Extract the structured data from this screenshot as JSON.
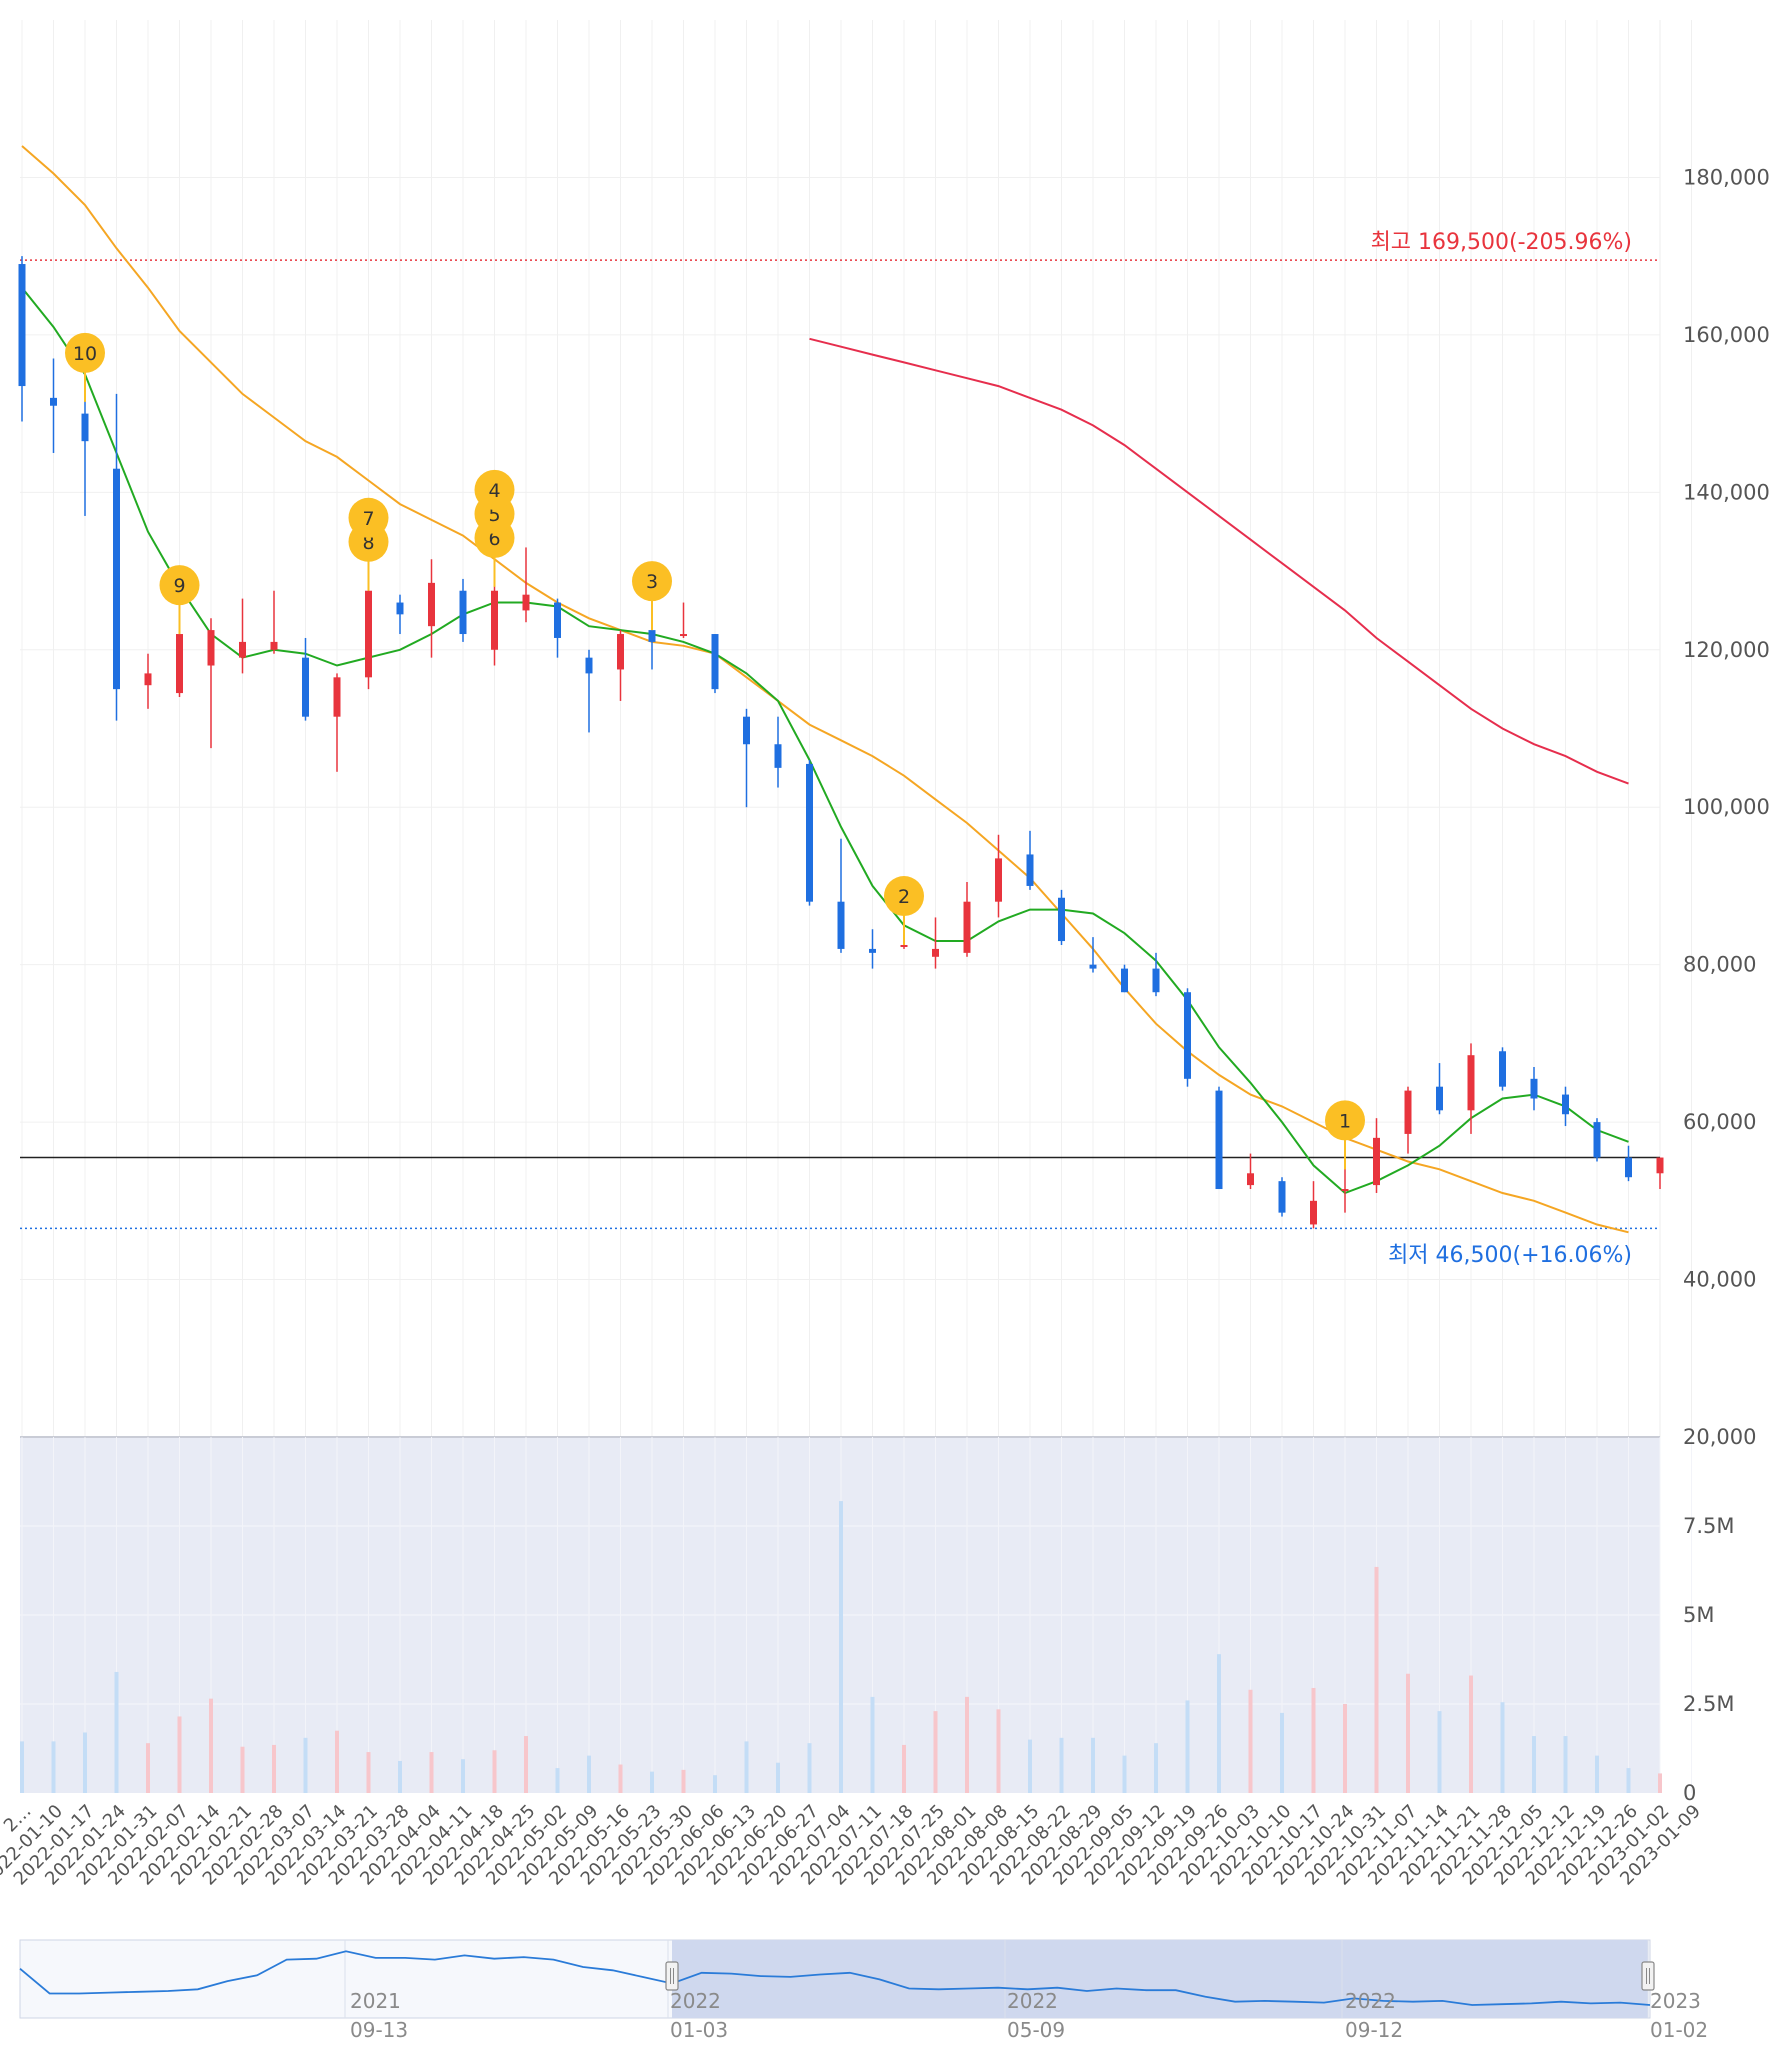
{
  "chart_data": {
    "type": "candlestick",
    "price_axis": {
      "ticks": [
        "180,000",
        "160,000",
        "140,000",
        "120,000",
        "100,000",
        "80,000",
        "60,000",
        "40,000",
        "20,000"
      ],
      "range": [
        20000,
        200000
      ]
    },
    "volume_axis": {
      "ticks": [
        "7.5M",
        "5M",
        "2.5M",
        "0"
      ],
      "range": [
        0,
        10000000
      ]
    },
    "max_label": "최고 169,500(-205.96%)",
    "min_label": "최저 46,500(+16.06%)",
    "max_value": 169500,
    "min_value": 46500,
    "current_line": 55500,
    "x_labels": [
      "2…",
      "01-10",
      "01-17",
      "01-24",
      "01-31",
      "02-07",
      "02-14",
      "02-21",
      "02-28",
      "03-07",
      "03-14",
      "03-21",
      "03-28",
      "04-04",
      "04-11",
      "04-18",
      "04-25",
      "05-02",
      "05-09",
      "05-16",
      "05-23",
      "05-30",
      "06-06",
      "06-13",
      "06-20",
      "06-27",
      "07-04",
      "07-11",
      "07-18",
      "07-25",
      "08-01",
      "08-08",
      "08-15",
      "08-22",
      "08-29",
      "09-05",
      "09-12",
      "09-19",
      "09-26",
      "10-03",
      "10-10",
      "10-17",
      "10-24",
      "10-31",
      "11-07",
      "11-14",
      "11-21",
      "11-28",
      "12-05",
      "12-12",
      "12-19",
      "12-26",
      "01-02",
      "01-09"
    ],
    "x_label_years": [
      "",
      "2022",
      "2022",
      "2022",
      "2022",
      "2022",
      "2022",
      "2022",
      "2022",
      "2022",
      "2022",
      "2022",
      "2022",
      "2022",
      "2022",
      "2022",
      "2022",
      "2022",
      "2022",
      "2022",
      "2022",
      "2022",
      "2022",
      "2022",
      "2022",
      "2022",
      "2022",
      "2022",
      "2022",
      "2022",
      "2022",
      "2022",
      "2022",
      "2022",
      "2022",
      "2022",
      "2022",
      "2022",
      "2022",
      "2022",
      "2022",
      "2022",
      "2022",
      "2022",
      "2022",
      "2022",
      "2022",
      "2022",
      "2022",
      "2022",
      "2022",
      "2022",
      "2023",
      "2023"
    ],
    "candles": [
      {
        "o": 169000,
        "h": 170000,
        "l": 149000,
        "c": 153500
      },
      {
        "o": 152000,
        "h": 157000,
        "l": 145000,
        "c": 151000
      },
      {
        "o": 150000,
        "h": 152000,
        "l": 137000,
        "c": 146500
      },
      {
        "o": 143000,
        "h": 152500,
        "l": 111000,
        "c": 115000
      },
      {
        "o": 115500,
        "h": 119500,
        "l": 112500,
        "c": 117000
      },
      {
        "o": 114500,
        "h": 122500,
        "l": 114000,
        "c": 122000
      },
      {
        "o": 118000,
        "h": 124000,
        "l": 107500,
        "c": 122500
      },
      {
        "o": 119000,
        "h": 126500,
        "l": 117000,
        "c": 121000
      },
      {
        "o": 120000,
        "h": 127500,
        "l": 119500,
        "c": 121000
      },
      {
        "o": 119000,
        "h": 121500,
        "l": 111000,
        "c": 111500
      },
      {
        "o": 111500,
        "h": 117000,
        "l": 104500,
        "c": 116500
      },
      {
        "o": 116500,
        "h": 128000,
        "l": 115000,
        "c": 127500
      },
      {
        "o": 126000,
        "h": 127000,
        "l": 122000,
        "c": 124500
      },
      {
        "o": 123000,
        "h": 131500,
        "l": 119000,
        "c": 128500
      },
      {
        "o": 127500,
        "h": 129000,
        "l": 121000,
        "c": 122000
      },
      {
        "o": 120000,
        "h": 128500,
        "l": 118000,
        "c": 127500
      },
      {
        "o": 125000,
        "h": 133000,
        "l": 123500,
        "c": 127000
      },
      {
        "o": 126000,
        "h": 126500,
        "l": 119000,
        "c": 121500
      },
      {
        "o": 119000,
        "h": 120000,
        "l": 109500,
        "c": 117000
      },
      {
        "o": 117500,
        "h": 122500,
        "l": 113500,
        "c": 122000
      },
      {
        "o": 122500,
        "h": 123000,
        "l": 117500,
        "c": 121000
      },
      {
        "o": 122000,
        "h": 126000,
        "l": 121500,
        "c": 122000
      },
      {
        "o": 122000,
        "h": 122000,
        "l": 114500,
        "c": 115000
      },
      {
        "o": 111500,
        "h": 112500,
        "l": 100000,
        "c": 108000
      },
      {
        "o": 108000,
        "h": 111500,
        "l": 102500,
        "c": 105000
      },
      {
        "o": 105500,
        "h": 106000,
        "l": 87500,
        "c": 88000
      },
      {
        "o": 88000,
        "h": 96000,
        "l": 81500,
        "c": 82000
      },
      {
        "o": 82000,
        "h": 84500,
        "l": 79500,
        "c": 81500
      },
      {
        "o": 82500,
        "h": 83000,
        "l": 82000,
        "c": 82500
      },
      {
        "o": 81000,
        "h": 86000,
        "l": 79500,
        "c": 82000
      },
      {
        "o": 81500,
        "h": 90500,
        "l": 81000,
        "c": 88000
      },
      {
        "o": 88000,
        "h": 96500,
        "l": 86000,
        "c": 93500
      },
      {
        "o": 94000,
        "h": 97000,
        "l": 89500,
        "c": 90000
      },
      {
        "o": 88500,
        "h": 89500,
        "l": 82500,
        "c": 83000
      },
      {
        "o": 80000,
        "h": 83500,
        "l": 79000,
        "c": 79500
      },
      {
        "o": 79500,
        "h": 80000,
        "l": 76500,
        "c": 76500
      },
      {
        "o": 79500,
        "h": 81500,
        "l": 76000,
        "c": 76500
      },
      {
        "o": 76500,
        "h": 77000,
        "l": 64500,
        "c": 65500
      },
      {
        "o": 64000,
        "h": 64500,
        "l": 51500,
        "c": 51500
      },
      {
        "o": 52000,
        "h": 56000,
        "l": 51500,
        "c": 53500
      },
      {
        "o": 52500,
        "h": 53000,
        "l": 48000,
        "c": 48500
      },
      {
        "o": 47000,
        "h": 52500,
        "l": 46500,
        "c": 50000
      },
      {
        "o": 51500,
        "h": 54500,
        "l": 48500,
        "c": 51500
      },
      {
        "o": 52000,
        "h": 60500,
        "l": 51000,
        "c": 58000
      },
      {
        "o": 58500,
        "h": 64500,
        "l": 56000,
        "c": 64000
      },
      {
        "o": 64500,
        "h": 67500,
        "l": 61000,
        "c": 61500
      },
      {
        "o": 61500,
        "h": 70000,
        "l": 58500,
        "c": 68500
      },
      {
        "o": 69000,
        "h": 69500,
        "l": 64000,
        "c": 64500
      },
      {
        "o": 65500,
        "h": 67000,
        "l": 61500,
        "c": 63000
      },
      {
        "o": 63500,
        "h": 64500,
        "l": 59500,
        "c": 61000
      },
      {
        "o": 60000,
        "h": 60500,
        "l": 55000,
        "c": 55500
      },
      {
        "o": 55500,
        "h": 57000,
        "l": 52500,
        "c": 53000
      },
      {
        "o": 53500,
        "h": 55500,
        "l": 51500,
        "c": 55500
      }
    ],
    "volumes": [
      1450000,
      1450000,
      1700000,
      3400000,
      1400000,
      2150000,
      2650000,
      1300000,
      1350000,
      1550000,
      1750000,
      1150000,
      900000,
      1150000,
      950000,
      1200000,
      1600000,
      700000,
      1050000,
      800000,
      600000,
      650000,
      500000,
      1450000,
      850000,
      1400000,
      8200000,
      2700000,
      1350000,
      2300000,
      2700000,
      2350000,
      1500000,
      1550000,
      1550000,
      1050000,
      1400000,
      2600000,
      3900000,
      2900000,
      2250000,
      2950000,
      2500000,
      6350000,
      3350000,
      2300000,
      3300000,
      2550000,
      1600000,
      1600000,
      1050000,
      700000,
      550000
    ],
    "ma5": [
      166000,
      161000,
      155000,
      145000,
      135000,
      128000,
      122000,
      119000,
      120000,
      119500,
      118000,
      119000,
      120000,
      122000,
      124500,
      126000,
      126000,
      125500,
      123000,
      122500,
      122000,
      121000,
      119500,
      117000,
      113500,
      106000,
      97500,
      90000,
      85000,
      83000,
      83000,
      85500,
      87000,
      87000,
      86500,
      84000,
      80500,
      75500,
      69500,
      65000,
      60000,
      54500,
      51000,
      52500,
      54500,
      57000,
      60500,
      63000,
      63500,
      62000,
      59000,
      57500
    ],
    "ma20": [
      184000,
      180500,
      176500,
      171000,
      166000,
      160500,
      156500,
      152500,
      149500,
      146500,
      144500,
      141500,
      138500,
      136500,
      134500,
      131500,
      128500,
      126000,
      124000,
      122500,
      121000,
      120500,
      119500,
      116500,
      113500,
      110500,
      108500,
      106500,
      104000,
      101000,
      98000,
      94500,
      91000,
      86500,
      82000,
      77000,
      72500,
      69000,
      66000,
      63500,
      62000,
      60000,
      58000,
      56500,
      55000,
      54000,
      52500,
      51000,
      50000,
      48500,
      47000,
      46000
    ],
    "ma60": [
      159500,
      158500,
      157500,
      156500,
      155500,
      154500,
      153500,
      152000,
      150500,
      148500,
      146000,
      143000,
      140000,
      137000,
      134000,
      131000,
      128000,
      125000,
      121500,
      118500,
      115500,
      112500,
      110000,
      108000,
      106500,
      104500,
      103000
    ],
    "markers": [
      {
        "label": "10",
        "idx": 2
      },
      {
        "label": "9",
        "idx": 5
      },
      {
        "label": "8",
        "idx": 11
      },
      {
        "label": "7",
        "idx": 11
      },
      {
        "label": "6",
        "idx": 15
      },
      {
        "label": "5",
        "idx": 15
      },
      {
        "label": "4",
        "idx": 15
      },
      {
        "label": "3",
        "idx": 20
      },
      {
        "label": "2",
        "idx": 28
      },
      {
        "label": "1",
        "idx": 42
      }
    ],
    "navigator": {
      "labels_year": [
        "2021",
        "2022",
        "2022",
        "2022",
        "2023"
      ],
      "labels_date": [
        "09-13",
        "01-03",
        "05-09",
        "09-12",
        "01-02"
      ]
    },
    "colors": {
      "up": "#e8343d",
      "down": "#1f6fe0",
      "ma5": "#22aa22",
      "ma20": "#f5a623",
      "ma60": "#e62e4d",
      "marker": "#fbbf24"
    }
  }
}
